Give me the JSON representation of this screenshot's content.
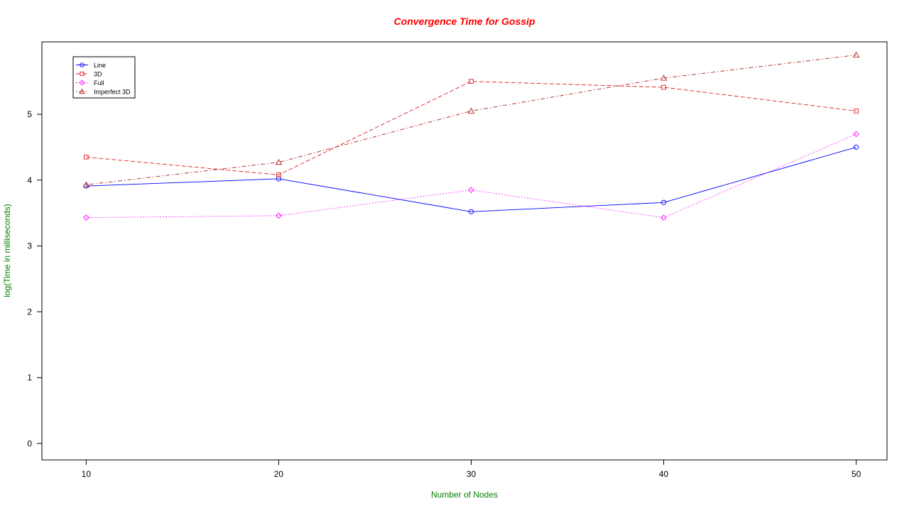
{
  "chart_data": {
    "type": "line",
    "title": "Convergence Time for Gossip",
    "xlabel": "Number of Nodes",
    "ylabel": "log(Time in milliseconds)",
    "x": [
      10,
      20,
      30,
      40,
      50
    ],
    "x_ticks": [
      "10",
      "20",
      "30",
      "40",
      "50"
    ],
    "y_ticks": [
      "0",
      "1",
      "2",
      "3",
      "4",
      "5"
    ],
    "xlim": [
      7.7,
      51.6
    ],
    "ylim": [
      -0.25,
      6.1
    ],
    "grid": false,
    "legend_position": "top-left",
    "title_color": "#ff0000",
    "label_color": "#008000",
    "series": [
      {
        "name": "Line",
        "values": [
          3.91,
          4.02,
          3.52,
          3.66,
          4.5
        ],
        "color": "#0000ff",
        "marker": "circle",
        "line_style": "solid"
      },
      {
        "name": "3D",
        "values": [
          4.35,
          4.08,
          5.5,
          5.41,
          5.05
        ],
        "color": "#df2020",
        "marker": "square",
        "line_style": "dashed"
      },
      {
        "name": "Full",
        "values": [
          3.43,
          3.46,
          3.85,
          3.43,
          4.7
        ],
        "color": "#ff00ff",
        "marker": "diamond",
        "line_style": "dotted"
      },
      {
        "name": "Imperfect 3D",
        "values": [
          3.93,
          4.27,
          5.05,
          5.55,
          5.9
        ],
        "color": "#b22222",
        "marker": "triangle",
        "line_style": "dotdash"
      }
    ]
  }
}
